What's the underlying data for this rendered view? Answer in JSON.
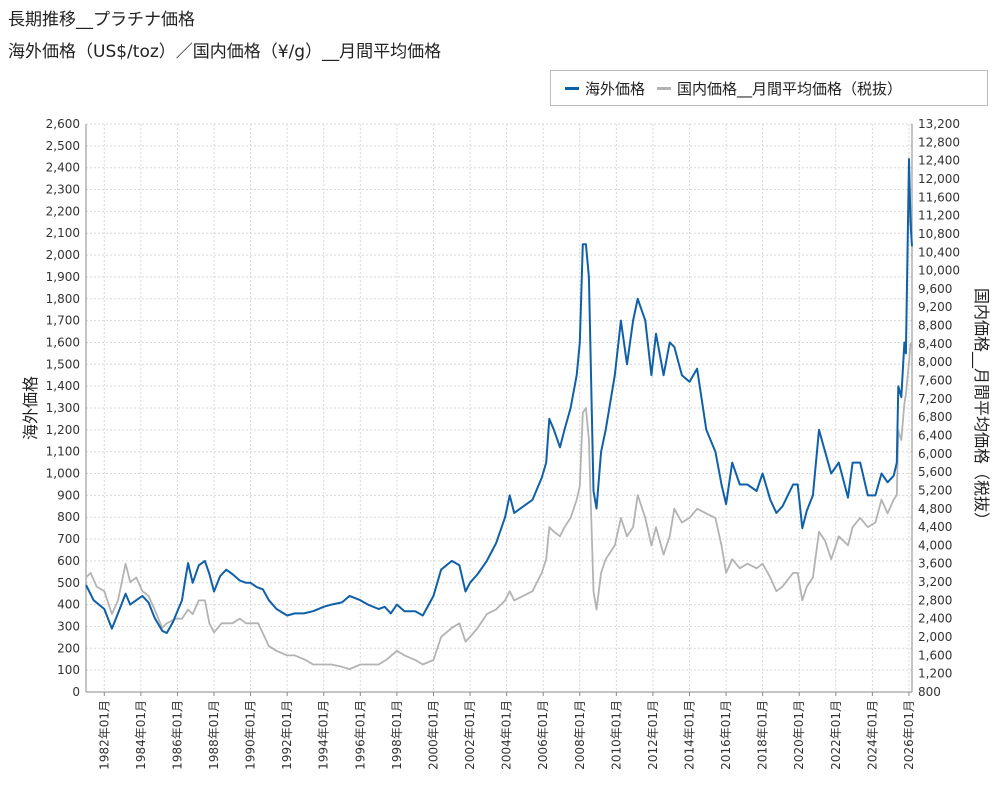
{
  "chart_data": {
    "type": "line",
    "title": "長期推移__プラチナ価格",
    "subtitle": "海外価格（US$/toz）／国内価格（¥/g）__月間平均価格",
    "ylabel": "海外価格",
    "y2label": "国内価格__月間平均価格（税抜）",
    "ylim": [
      0,
      2600
    ],
    "y2lim": [
      800,
      13200
    ],
    "xlim": [
      "1981-01",
      "2026-03"
    ],
    "legend_position": "top-right",
    "grid": true,
    "y_ticks": [
      "0",
      "100",
      "200",
      "300",
      "400",
      "500",
      "600",
      "700",
      "800",
      "900",
      "1,000",
      "1,100",
      "1,200",
      "1,300",
      "1,400",
      "1,500",
      "1,600",
      "1,700",
      "1,800",
      "1,900",
      "2,000",
      "2,100",
      "2,200",
      "2,300",
      "2,400",
      "2,500",
      "2,600"
    ],
    "y2_ticks": [
      "800",
      "1,200",
      "1,600",
      "2,000",
      "2,400",
      "2,800",
      "3,200",
      "3,600",
      "4,000",
      "4,400",
      "4,800",
      "5,200",
      "5,600",
      "6,000",
      "6,400",
      "6,800",
      "7,200",
      "7,600",
      "8,000",
      "8,400",
      "8,800",
      "9,200",
      "9,600",
      "10,000",
      "10,400",
      "10,800",
      "11,200",
      "11,600",
      "12,000",
      "12,400",
      "12,800",
      "13,200"
    ],
    "x_ticks": [
      "1982年01月",
      "1984年01月",
      "1986年01月",
      "1988年01月",
      "1990年01月",
      "1992年01月",
      "1994年01月",
      "1996年01月",
      "1998年01月",
      "2000年01月",
      "2002年01月",
      "2004年01月",
      "2006年01月",
      "2008年01月",
      "2010年01月",
      "2012年01月",
      "2014年01月",
      "2016年01月",
      "2018年01月",
      "2020年01月",
      "2022年01月",
      "2024年01月",
      "2026年01月"
    ],
    "series": [
      {
        "name": "海外価格",
        "color": "#1060a8",
        "axis": "left",
        "points": [
          [
            "1981-01",
            490
          ],
          [
            "1981-06",
            420
          ],
          [
            "1982-01",
            380
          ],
          [
            "1982-06",
            290
          ],
          [
            "1982-10",
            360
          ],
          [
            "1983-03",
            450
          ],
          [
            "1983-06",
            400
          ],
          [
            "1983-10",
            420
          ],
          [
            "1984-02",
            440
          ],
          [
            "1984-06",
            410
          ],
          [
            "1984-10",
            340
          ],
          [
            "1985-03",
            280
          ],
          [
            "1985-06",
            270
          ],
          [
            "1985-10",
            320
          ],
          [
            "1986-01",
            370
          ],
          [
            "1986-04",
            420
          ],
          [
            "1986-06",
            510
          ],
          [
            "1986-08",
            590
          ],
          [
            "1986-11",
            500
          ],
          [
            "1987-03",
            580
          ],
          [
            "1987-07",
            600
          ],
          [
            "1987-10",
            540
          ],
          [
            "1988-01",
            460
          ],
          [
            "1988-05",
            530
          ],
          [
            "1988-09",
            560
          ],
          [
            "1989-01",
            540
          ],
          [
            "1989-06",
            510
          ],
          [
            "1989-10",
            500
          ],
          [
            "1990-01",
            500
          ],
          [
            "1990-05",
            480
          ],
          [
            "1990-09",
            470
          ],
          [
            "1991-01",
            420
          ],
          [
            "1991-06",
            380
          ],
          [
            "1992-01",
            350
          ],
          [
            "1992-06",
            360
          ],
          [
            "1992-12",
            360
          ],
          [
            "1993-06",
            370
          ],
          [
            "1994-01",
            390
          ],
          [
            "1994-06",
            400
          ],
          [
            "1995-01",
            410
          ],
          [
            "1995-06",
            440
          ],
          [
            "1996-01",
            420
          ],
          [
            "1996-06",
            400
          ],
          [
            "1997-01",
            380
          ],
          [
            "1997-05",
            390
          ],
          [
            "1997-09",
            360
          ],
          [
            "1998-01",
            400
          ],
          [
            "1998-06",
            370
          ],
          [
            "1999-01",
            370
          ],
          [
            "1999-06",
            350
          ],
          [
            "2000-01",
            440
          ],
          [
            "2000-06",
            560
          ],
          [
            "2001-01",
            600
          ],
          [
            "2001-06",
            580
          ],
          [
            "2001-10",
            460
          ],
          [
            "2002-01",
            500
          ],
          [
            "2002-06",
            540
          ],
          [
            "2002-12",
            600
          ],
          [
            "2003-06",
            680
          ],
          [
            "2003-12",
            800
          ],
          [
            "2004-03",
            900
          ],
          [
            "2004-06",
            820
          ],
          [
            "2004-12",
            850
          ],
          [
            "2005-06",
            880
          ],
          [
            "2005-12",
            980
          ],
          [
            "2006-03",
            1050
          ],
          [
            "2006-05",
            1250
          ],
          [
            "2006-08",
            1200
          ],
          [
            "2006-12",
            1120
          ],
          [
            "2007-03",
            1200
          ],
          [
            "2007-07",
            1300
          ],
          [
            "2007-11",
            1450
          ],
          [
            "2008-01",
            1600
          ],
          [
            "2008-03",
            2050
          ],
          [
            "2008-05",
            2050
          ],
          [
            "2008-07",
            1900
          ],
          [
            "2008-10",
            920
          ],
          [
            "2008-12",
            840
          ],
          [
            "2009-03",
            1100
          ],
          [
            "2009-06",
            1200
          ],
          [
            "2009-12",
            1450
          ],
          [
            "2010-04",
            1700
          ],
          [
            "2010-08",
            1500
          ],
          [
            "2010-12",
            1700
          ],
          [
            "2011-03",
            1800
          ],
          [
            "2011-08",
            1700
          ],
          [
            "2011-12",
            1450
          ],
          [
            "2012-03",
            1640
          ],
          [
            "2012-08",
            1450
          ],
          [
            "2012-12",
            1600
          ],
          [
            "2013-03",
            1580
          ],
          [
            "2013-08",
            1450
          ],
          [
            "2014-01",
            1420
          ],
          [
            "2014-06",
            1480
          ],
          [
            "2014-12",
            1200
          ],
          [
            "2015-06",
            1100
          ],
          [
            "2015-10",
            950
          ],
          [
            "2016-01",
            860
          ],
          [
            "2016-05",
            1050
          ],
          [
            "2016-10",
            950
          ],
          [
            "2017-03",
            950
          ],
          [
            "2017-09",
            920
          ],
          [
            "2018-01",
            1000
          ],
          [
            "2018-06",
            880
          ],
          [
            "2018-10",
            820
          ],
          [
            "2019-02",
            850
          ],
          [
            "2019-09",
            950
          ],
          [
            "2019-12",
            950
          ],
          [
            "2020-03",
            750
          ],
          [
            "2020-06",
            830
          ],
          [
            "2020-10",
            900
          ],
          [
            "2021-02",
            1200
          ],
          [
            "2021-06",
            1100
          ],
          [
            "2021-10",
            1000
          ],
          [
            "2022-03",
            1050
          ],
          [
            "2022-09",
            890
          ],
          [
            "2022-12",
            1050
          ],
          [
            "2023-05",
            1050
          ],
          [
            "2023-10",
            900
          ],
          [
            "2024-03",
            900
          ],
          [
            "2024-07",
            1000
          ],
          [
            "2024-11",
            960
          ],
          [
            "2025-03",
            990
          ],
          [
            "2025-05",
            1050
          ],
          [
            "2025-06",
            1400
          ],
          [
            "2025-08",
            1350
          ],
          [
            "2025-10",
            1600
          ],
          [
            "2025-11",
            1550
          ],
          [
            "2026-01",
            2440
          ],
          [
            "2026-02",
            2150
          ],
          [
            "2026-03",
            2040
          ]
        ]
      },
      {
        "name": "国内価格__月間平均価格（税抜）",
        "color": "#b3b3b3",
        "axis": "right",
        "points": [
          [
            "1981-01",
            3300
          ],
          [
            "1981-04",
            3400
          ],
          [
            "1981-08",
            3100
          ],
          [
            "1982-01",
            3000
          ],
          [
            "1982-06",
            2500
          ],
          [
            "1982-10",
            2800
          ],
          [
            "1983-03",
            3600
          ],
          [
            "1983-06",
            3200
          ],
          [
            "1983-10",
            3300
          ],
          [
            "1984-02",
            3000
          ],
          [
            "1984-06",
            2900
          ],
          [
            "1984-10",
            2600
          ],
          [
            "1985-03",
            2200
          ],
          [
            "1985-06",
            2300
          ],
          [
            "1985-12",
            2400
          ],
          [
            "1986-04",
            2400
          ],
          [
            "1986-08",
            2600
          ],
          [
            "1986-11",
            2500
          ],
          [
            "1987-03",
            2800
          ],
          [
            "1987-07",
            2800
          ],
          [
            "1987-10",
            2300
          ],
          [
            "1988-01",
            2100
          ],
          [
            "1988-06",
            2300
          ],
          [
            "1989-01",
            2300
          ],
          [
            "1989-06",
            2400
          ],
          [
            "1989-10",
            2300
          ],
          [
            "1990-01",
            2300
          ],
          [
            "1990-06",
            2300
          ],
          [
            "1991-01",
            1800
          ],
          [
            "1991-06",
            1700
          ],
          [
            "1992-01",
            1600
          ],
          [
            "1992-06",
            1600
          ],
          [
            "1993-01",
            1500
          ],
          [
            "1993-06",
            1400
          ],
          [
            "1994-01",
            1400
          ],
          [
            "1994-06",
            1400
          ],
          [
            "1995-01",
            1350
          ],
          [
            "1995-06",
            1300
          ],
          [
            "1996-01",
            1400
          ],
          [
            "1996-06",
            1400
          ],
          [
            "1997-01",
            1400
          ],
          [
            "1997-06",
            1500
          ],
          [
            "1998-01",
            1700
          ],
          [
            "1998-06",
            1600
          ],
          [
            "1999-01",
            1500
          ],
          [
            "1999-06",
            1400
          ],
          [
            "2000-01",
            1500
          ],
          [
            "2000-06",
            2000
          ],
          [
            "2001-01",
            2200
          ],
          [
            "2001-06",
            2300
          ],
          [
            "2001-10",
            1900
          ],
          [
            "2002-01",
            2000
          ],
          [
            "2002-06",
            2200
          ],
          [
            "2002-12",
            2500
          ],
          [
            "2003-06",
            2600
          ],
          [
            "2003-12",
            2800
          ],
          [
            "2004-03",
            3000
          ],
          [
            "2004-06",
            2800
          ],
          [
            "2004-12",
            2900
          ],
          [
            "2005-06",
            3000
          ],
          [
            "2005-12",
            3400
          ],
          [
            "2006-03",
            3700
          ],
          [
            "2006-05",
            4400
          ],
          [
            "2006-08",
            4300
          ],
          [
            "2006-12",
            4200
          ],
          [
            "2007-03",
            4400
          ],
          [
            "2007-07",
            4600
          ],
          [
            "2007-11",
            5000
          ],
          [
            "2008-01",
            5300
          ],
          [
            "2008-03",
            6900
          ],
          [
            "2008-05",
            7000
          ],
          [
            "2008-07",
            6300
          ],
          [
            "2008-10",
            3000
          ],
          [
            "2008-12",
            2600
          ],
          [
            "2009-03",
            3400
          ],
          [
            "2009-06",
            3700
          ],
          [
            "2009-12",
            4000
          ],
          [
            "2010-04",
            4600
          ],
          [
            "2010-08",
            4200
          ],
          [
            "2010-12",
            4400
          ],
          [
            "2011-03",
            5100
          ],
          [
            "2011-08",
            4600
          ],
          [
            "2011-12",
            4000
          ],
          [
            "2012-03",
            4400
          ],
          [
            "2012-08",
            3800
          ],
          [
            "2012-12",
            4200
          ],
          [
            "2013-03",
            4800
          ],
          [
            "2013-08",
            4500
          ],
          [
            "2014-01",
            4600
          ],
          [
            "2014-06",
            4800
          ],
          [
            "2014-12",
            4700
          ],
          [
            "2015-06",
            4600
          ],
          [
            "2015-10",
            4000
          ],
          [
            "2016-01",
            3400
          ],
          [
            "2016-05",
            3700
          ],
          [
            "2016-10",
            3500
          ],
          [
            "2017-03",
            3600
          ],
          [
            "2017-09",
            3500
          ],
          [
            "2018-01",
            3600
          ],
          [
            "2018-06",
            3300
          ],
          [
            "2018-10",
            3000
          ],
          [
            "2019-02",
            3100
          ],
          [
            "2019-09",
            3400
          ],
          [
            "2019-12",
            3400
          ],
          [
            "2020-03",
            2800
          ],
          [
            "2020-06",
            3100
          ],
          [
            "2020-10",
            3300
          ],
          [
            "2021-02",
            4300
          ],
          [
            "2021-06",
            4100
          ],
          [
            "2021-10",
            3700
          ],
          [
            "2022-03",
            4200
          ],
          [
            "2022-09",
            4000
          ],
          [
            "2022-12",
            4400
          ],
          [
            "2023-05",
            4600
          ],
          [
            "2023-10",
            4400
          ],
          [
            "2024-03",
            4500
          ],
          [
            "2024-07",
            5000
          ],
          [
            "2024-11",
            4700
          ],
          [
            "2025-03",
            5000
          ],
          [
            "2025-05",
            5100
          ],
          [
            "2025-06",
            6500
          ],
          [
            "2025-08",
            6300
          ],
          [
            "2025-10",
            7100
          ],
          [
            "2025-11",
            7300
          ],
          [
            "2026-01",
            8000
          ],
          [
            "2026-02",
            8400
          ],
          [
            "2026-03",
            8400
          ]
        ]
      }
    ]
  }
}
